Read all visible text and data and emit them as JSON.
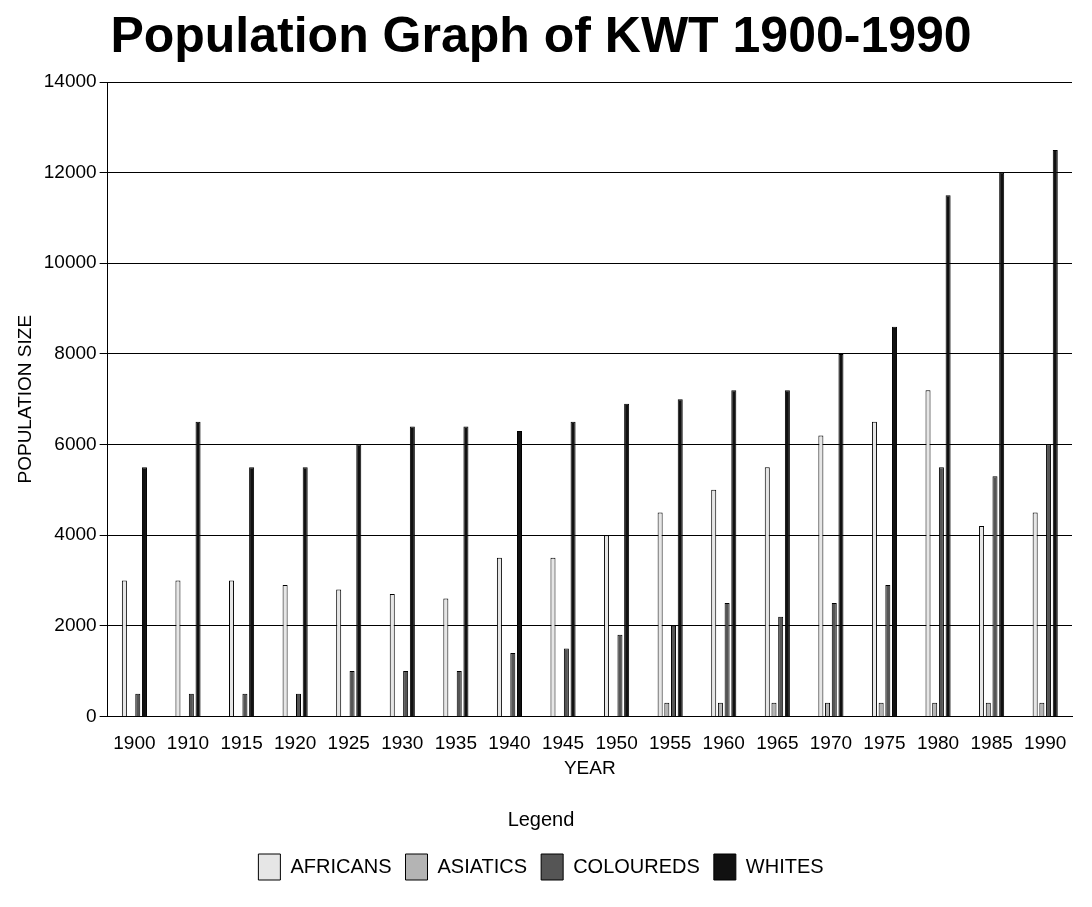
{
  "chart_data": {
    "type": "bar",
    "title": "Population Graph of KWT 1900-1990",
    "xlabel": "YEAR",
    "ylabel": "POPULATION SIZE",
    "legend_title": "Legend",
    "categories": [
      "1900",
      "1910",
      "1915",
      "1920",
      "1925",
      "1930",
      "1935",
      "1940",
      "1945",
      "1950",
      "1955",
      "1960",
      "1965",
      "1970",
      "1975",
      "1980",
      "1985",
      "1990"
    ],
    "series": [
      {
        "name": "AFRICANS",
        "color": "#e6e6e6",
        "values": [
          3000,
          3000,
          3000,
          2900,
          2800,
          2700,
          2600,
          3500,
          3500,
          4000,
          4500,
          5000,
          5500,
          6200,
          6500,
          7200,
          4200,
          4500
        ]
      },
      {
        "name": "ASIATICS",
        "color": "#b4b4b4",
        "values": [
          0,
          0,
          0,
          0,
          0,
          0,
          0,
          0,
          0,
          0,
          300,
          300,
          300,
          300,
          300,
          300,
          300,
          300
        ]
      },
      {
        "name": "COLOUREDS",
        "color": "#555555",
        "values": [
          500,
          500,
          500,
          500,
          1000,
          1000,
          1000,
          1400,
          1500,
          1800,
          2000,
          2500,
          2200,
          2500,
          2900,
          5500,
          5300,
          6000
        ]
      },
      {
        "name": "WHITES",
        "color": "#111111",
        "values": [
          5500,
          6500,
          5500,
          5500,
          6000,
          6400,
          6400,
          6300,
          6500,
          6900,
          7000,
          7200,
          7200,
          8000,
          8600,
          11500,
          12000,
          12500
        ]
      }
    ],
    "ylim": [
      0,
      14000
    ],
    "yticks": [
      0,
      2000,
      4000,
      6000,
      8000,
      10000,
      12000,
      14000
    ],
    "grid": "y",
    "legend": "bottom"
  }
}
